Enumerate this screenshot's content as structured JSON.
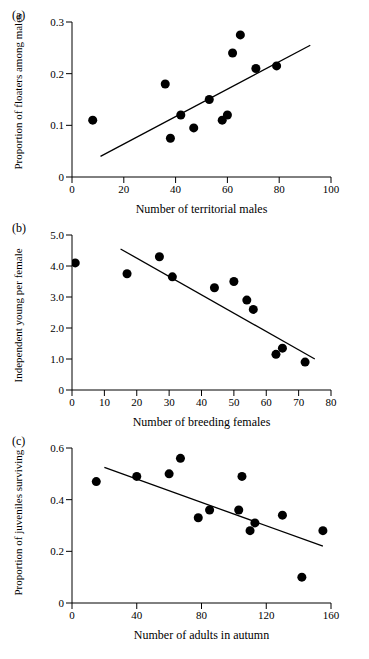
{
  "chart_data": [
    {
      "type": "scatter",
      "title": "(a)",
      "x_label": "Number of territorial males",
      "y_label": "Proportion of floaters among males",
      "x": [
        8,
        36,
        38,
        42,
        47,
        53,
        58,
        60,
        62,
        65,
        71,
        79
      ],
      "y": [
        0.11,
        0.18,
        0.075,
        0.12,
        0.095,
        0.15,
        0.11,
        0.12,
        0.24,
        0.275,
        0.21,
        0.215
      ],
      "trend": {
        "x": [
          11,
          92
        ],
        "y": [
          0.04,
          0.255
        ]
      },
      "xlim": [
        0,
        100
      ],
      "ylim": [
        0,
        0.3
      ],
      "xticks": [
        0,
        20,
        40,
        60,
        80,
        100
      ],
      "yticks": [
        0,
        0.1,
        0.2,
        0.3
      ],
      "color": "#000000",
      "marker": "circle"
    },
    {
      "type": "scatter",
      "title": "(b)",
      "x_label": "Number of breeding females",
      "y_label": "Independent young per female",
      "x": [
        1,
        17,
        27,
        31,
        44,
        50,
        54,
        56,
        63,
        65,
        72
      ],
      "y": [
        4.1,
        3.75,
        4.3,
        3.65,
        3.3,
        3.5,
        2.9,
        2.6,
        1.15,
        1.35,
        0.9
      ],
      "trend": {
        "x": [
          15,
          75
        ],
        "y": [
          4.55,
          1.0
        ]
      },
      "xlim": [
        0,
        80
      ],
      "ylim": [
        0,
        5
      ],
      "xticks": [
        0,
        10,
        20,
        30,
        40,
        50,
        60,
        70,
        80
      ],
      "yticks": [
        0,
        {
          "value": 1,
          "label": "1.0"
        },
        {
          "value": 2,
          "label": "2.0"
        },
        {
          "value": 3,
          "label": "3.0"
        },
        {
          "value": 4,
          "label": "4.0"
        },
        {
          "value": 5,
          "label": "5.0"
        }
      ],
      "color": "#000000",
      "marker": "circle"
    },
    {
      "type": "scatter",
      "title": "(c)",
      "x_label": "Number of adults in autumn",
      "y_label": "Proportion of juveniles surviving",
      "x": [
        15,
        40,
        60,
        67,
        78,
        85,
        103,
        105,
        110,
        113,
        130,
        142,
        155
      ],
      "y": [
        0.47,
        0.49,
        0.5,
        0.56,
        0.33,
        0.36,
        0.36,
        0.49,
        0.28,
        0.31,
        0.34,
        0.1,
        0.28
      ],
      "trend": {
        "x": [
          20,
          155
        ],
        "y": [
          0.525,
          0.22
        ]
      },
      "xlim": [
        0,
        160
      ],
      "ylim": [
        0,
        0.6
      ],
      "xticks": [
        0,
        40,
        80,
        120,
        160
      ],
      "yticks": [
        0,
        0.2,
        0.4,
        0.6
      ],
      "color": "#000000",
      "marker": "circle"
    }
  ]
}
